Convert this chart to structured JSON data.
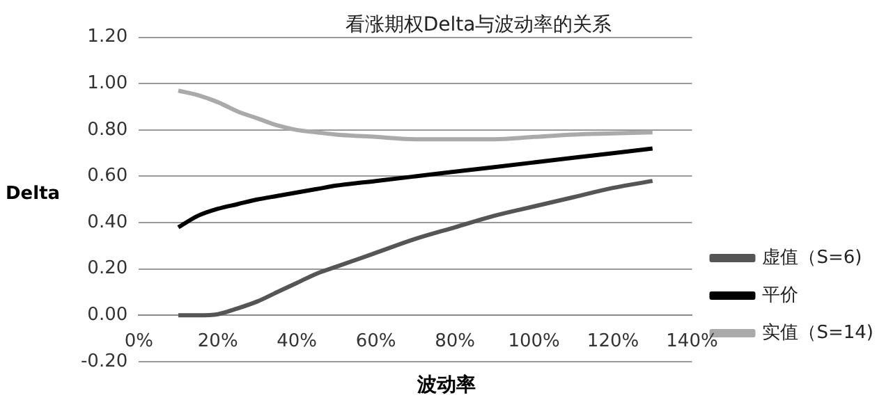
{
  "chart_data": {
    "type": "line",
    "title": "看涨期权Delta与波动率的关系",
    "xlabel": "波动率",
    "ylabel": "Delta",
    "xlim": [
      0,
      1.4
    ],
    "xticks": [
      {
        "value": 0,
        "label": "0%"
      },
      {
        "value": 0.2,
        "label": "20%"
      },
      {
        "value": 0.4,
        "label": "40%"
      },
      {
        "value": 0.6,
        "label": "60%"
      },
      {
        "value": 0.8,
        "label": "80%"
      },
      {
        "value": 1.0,
        "label": "100%"
      },
      {
        "value": 1.2,
        "label": "120%"
      },
      {
        "value": 1.4,
        "label": "140%"
      }
    ],
    "ylim": [
      -0.2,
      1.2
    ],
    "yticks": [
      {
        "value": -0.2,
        "label": "-0.20"
      },
      {
        "value": 0,
        "label": "0.00"
      },
      {
        "value": 0.2,
        "label": "0.20"
      },
      {
        "value": 0.4,
        "label": "0.40"
      },
      {
        "value": 0.6,
        "label": "0.60"
      },
      {
        "value": 0.8,
        "label": "0.80"
      },
      {
        "value": 1.0,
        "label": "1.00"
      },
      {
        "value": 1.2,
        "label": "1.20"
      }
    ],
    "grid": "y",
    "legend": "right",
    "marker": "none",
    "line_style": "solid",
    "x": [
      0.1,
      0.15,
      0.2,
      0.25,
      0.3,
      0.35,
      0.4,
      0.45,
      0.5,
      0.6,
      0.7,
      0.8,
      0.9,
      1.0,
      1.1,
      1.2,
      1.3
    ],
    "series": [
      {
        "name": "虚值（S=6)",
        "color": "#555555",
        "values": [
          0,
          0,
          0.005,
          0.03,
          0.06,
          0.1,
          0.14,
          0.18,
          0.21,
          0.27,
          0.33,
          0.38,
          0.43,
          0.47,
          0.51,
          0.55,
          0.58
        ]
      },
      {
        "name": "平价",
        "color": "#000000",
        "values": [
          0.38,
          0.43,
          0.46,
          0.48,
          0.5,
          0.515,
          0.53,
          0.545,
          0.56,
          0.58,
          0.6,
          0.62,
          0.64,
          0.66,
          0.68,
          0.7,
          0.72
        ]
      },
      {
        "name": "实值（S=14)",
        "color": "#aaaaaa",
        "values": [
          0.97,
          0.95,
          0.92,
          0.88,
          0.85,
          0.82,
          0.8,
          0.79,
          0.78,
          0.77,
          0.76,
          0.76,
          0.76,
          0.77,
          0.78,
          0.785,
          0.79
        ]
      }
    ]
  }
}
